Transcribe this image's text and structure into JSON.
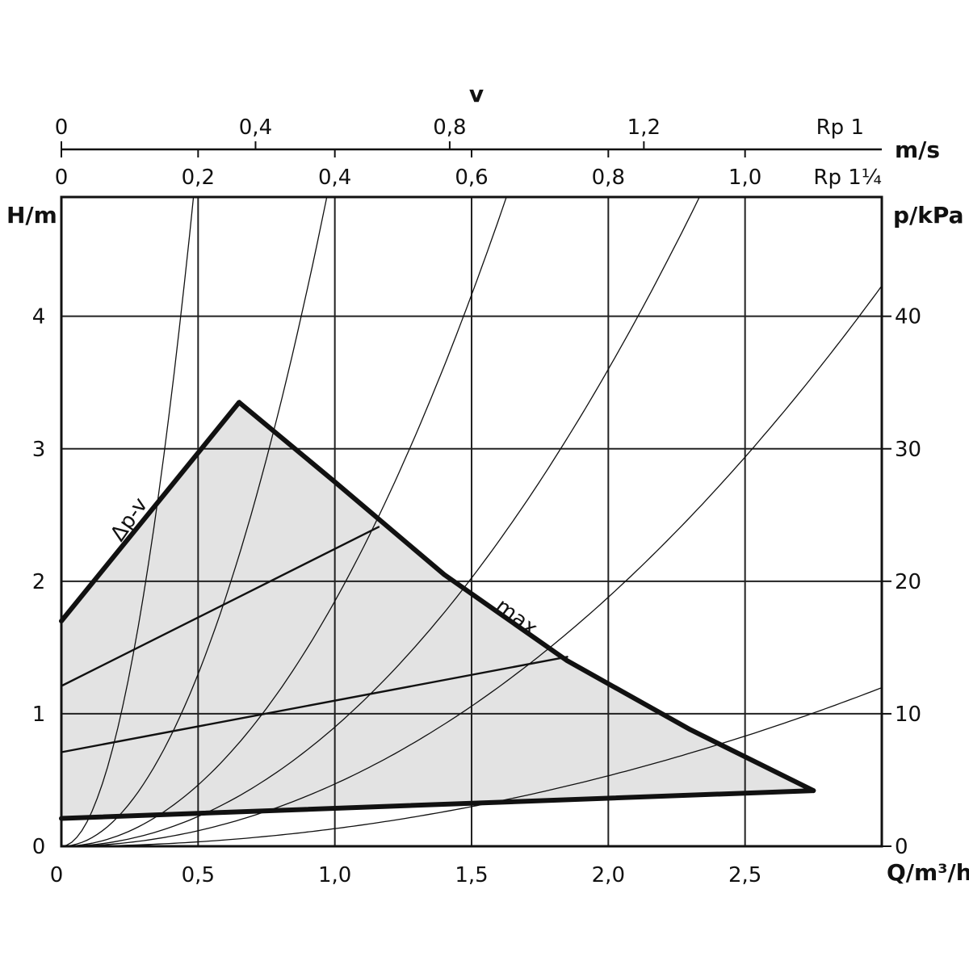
{
  "chart_data": {
    "type": "line",
    "colors": {
      "ink": "#111111",
      "grid": "#222222",
      "fill": "#e3e3e3",
      "background": "#ffffff"
    },
    "axes": {
      "x": {
        "label": "Q/m³/h",
        "range": [
          0,
          3.0
        ],
        "ticks": [
          0,
          0.5,
          1.0,
          1.5,
          2.0,
          2.5
        ],
        "tick_labels": [
          "0",
          "0,5",
          "1,0",
          "1,5",
          "2,0",
          "2,5"
        ]
      },
      "y_left": {
        "label": "H/m",
        "range": [
          0,
          4.9
        ],
        "ticks": [
          0,
          1,
          2,
          3,
          4
        ],
        "tick_labels": [
          "0",
          "1",
          "2",
          "3",
          "4"
        ]
      },
      "y_right": {
        "label": "p/kPa",
        "range": [
          0,
          49
        ],
        "ticks": [
          0,
          10,
          20,
          30,
          40
        ],
        "tick_labels": [
          "0",
          "10",
          "20",
          "30",
          "40"
        ]
      },
      "top_velocity": {
        "title": "v",
        "unit": "m/s",
        "rp1": {
          "label": "Rp 1",
          "ticks": [
            0,
            0.4,
            0.8,
            1.2
          ],
          "tick_labels": [
            "0",
            "0,4",
            "0,8",
            "1,2"
          ],
          "q_at_tick": [
            0,
            0.71,
            1.42,
            2.13
          ]
        },
        "rp114": {
          "label": "Rp 1¼",
          "ticks": [
            0,
            0.2,
            0.4,
            0.6,
            0.8,
            1.0
          ],
          "tick_labels": [
            "0",
            "0,2",
            "0,4",
            "0,6",
            "0,8",
            "1,0"
          ],
          "q_at_tick": [
            0,
            0.5,
            1.0,
            1.5,
            2.0,
            2.5
          ]
        }
      }
    },
    "grid": true,
    "operating_region": {
      "upper_boundary": [
        [
          0,
          1.7
        ],
        [
          0.65,
          3.35
        ],
        [
          1.4,
          2.05
        ],
        [
          1.85,
          1.4
        ],
        [
          2.3,
          0.88
        ],
        [
          2.75,
          0.42
        ]
      ],
      "lower_boundary": [
        [
          0,
          0.21
        ],
        [
          2.75,
          0.42
        ]
      ]
    },
    "series": [
      {
        "name": "Δp-v",
        "points": [
          [
            0,
            1.7
          ],
          [
            0.65,
            3.35
          ]
        ]
      },
      {
        "name": "max.",
        "points": [
          [
            0.65,
            3.35
          ],
          [
            1.0,
            2.75
          ],
          [
            1.4,
            2.05
          ],
          [
            1.85,
            1.4
          ],
          [
            2.3,
            0.88
          ],
          [
            2.75,
            0.42
          ]
        ]
      },
      {
        "points": [
          [
            0,
            1.21
          ],
          [
            1.16,
            2.41
          ]
        ]
      },
      {
        "points": [
          [
            0,
            0.71
          ],
          [
            1.85,
            1.43
          ]
        ]
      },
      {
        "points": [
          [
            0,
            0.21
          ],
          [
            2.75,
            0.42
          ]
        ]
      }
    ],
    "system_curves_k": [
      21.0,
      5.2,
      1.85,
      0.9,
      0.47,
      0.133
    ]
  }
}
